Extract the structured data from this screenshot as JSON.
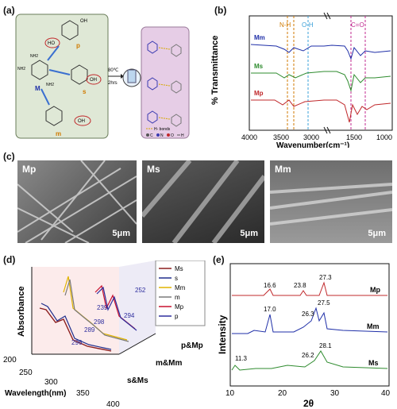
{
  "panels": {
    "a": {
      "label": "(a)",
      "reagent_letters": {
        "p": "p",
        "s": "s",
        "m": "m",
        "M": "M"
      },
      "functional_labels": {
        "hydroxyl": "HO",
        "oh": "OH",
        "carboxyl_o": "O",
        "carboxyl_oh": "OH",
        "nh2": "NH2",
        "n": "N"
      },
      "arrow_condition_top": "80℃",
      "arrow_condition_bottom": "2hrs",
      "legend_hbond": "H- bonds",
      "legend_atoms": [
        "C",
        "N",
        "O",
        "H"
      ]
    },
    "b": {
      "label": "(b)",
      "series_labels": [
        "Mm",
        "Ms",
        "Mp"
      ],
      "peak_labels": [
        "N-H",
        "O-H",
        "C=O"
      ],
      "ylabel": "% Transmittance",
      "xlabel": "Wavenumber(cm⁻¹)",
      "ticks_left": [
        "4000",
        "3500",
        "3000"
      ],
      "ticks_right": [
        "1500",
        "1000"
      ]
    },
    "c": {
      "label": "(c)",
      "images": [
        {
          "name": "Mp",
          "scale": "5μm"
        },
        {
          "name": "Ms",
          "scale": "5μm"
        },
        {
          "name": "Mm",
          "scale": "5μm"
        }
      ]
    },
    "d": {
      "label": "(d)",
      "ylabel": "Absorbance",
      "xlabel": "Wavelength(nm)",
      "xticks": [
        "200",
        "250",
        "300",
        "350",
        "400"
      ],
      "depth_labels": [
        "p&Mp",
        "m&Mm",
        "s&Ms"
      ],
      "peak_values": [
        "252",
        "239",
        "294",
        "298",
        "289",
        "296"
      ],
      "legend": [
        {
          "name": "Ms",
          "color": "#8b1d1d"
        },
        {
          "name": "s",
          "color": "#1f2d8c"
        },
        {
          "name": "Mm",
          "color": "#e0b400"
        },
        {
          "name": "m",
          "color": "#7a7a7a"
        },
        {
          "name": "Mp",
          "color": "#c8102e"
        },
        {
          "name": "p",
          "color": "#2e2e9e"
        }
      ]
    },
    "e": {
      "label": "(e)",
      "ylabel": "Intensity",
      "xlabel": "2θ",
      "xticks": [
        "10",
        "20",
        "30",
        "40"
      ],
      "series_labels": [
        "Mp",
        "Mm",
        "Ms"
      ],
      "peak_labels": {
        "Mp": [
          "16.6",
          "23.8",
          "27.3"
        ],
        "Mm": [
          "17.0",
          "26.3",
          "27.5"
        ],
        "Ms": [
          "11.3",
          "26.2",
          "28.1"
        ]
      }
    }
  },
  "chart_data": [
    {
      "type": "line",
      "panel": "b",
      "xlabel": "Wavenumber(cm⁻¹)",
      "ylabel": "% Transmittance",
      "xlim": [
        4000,
        1000
      ],
      "series": [
        {
          "name": "Mm",
          "color": "#1f2fa8"
        },
        {
          "name": "Ms",
          "color": "#2e8b2e"
        },
        {
          "name": "Mp",
          "color": "#c0282b"
        }
      ],
      "annotations": [
        {
          "text": "N-H",
          "x": 3450
        },
        {
          "text": "O-H",
          "x": 3200
        },
        {
          "text": "C=O",
          "x": 1650
        }
      ]
    },
    {
      "type": "line",
      "panel": "e",
      "xlabel": "2θ",
      "ylabel": "Intensity",
      "xlim": [
        10,
        40
      ],
      "series": [
        {
          "name": "Mp",
          "color": "#c0282b",
          "peaks": [
            16.6,
            23.8,
            27.3
          ]
        },
        {
          "name": "Mm",
          "color": "#1f2fa8",
          "peaks": [
            17.0,
            26.3,
            27.5
          ]
        },
        {
          "name": "Ms",
          "color": "#2e8b2e",
          "peaks": [
            11.3,
            26.2,
            28.1
          ]
        }
      ]
    }
  ]
}
